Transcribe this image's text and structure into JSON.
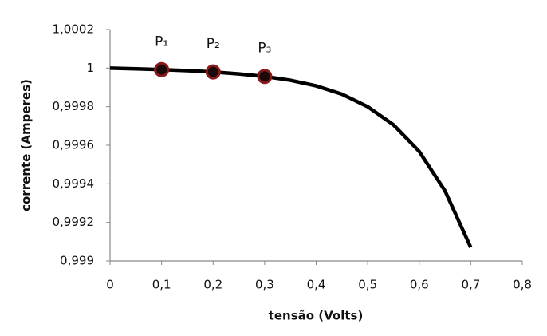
{
  "chart_data": {
    "type": "line",
    "xlabel": "tensão (Volts)",
    "ylabel": "corrente (Amperes)",
    "x": [
      0,
      0.05,
      0.1,
      0.15,
      0.2,
      0.25,
      0.3,
      0.35,
      0.4,
      0.45,
      0.5,
      0.55,
      0.6,
      0.65,
      0.7
    ],
    "values": [
      1,
      0.999996,
      0.999992,
      0.999987,
      0.99998,
      0.99997,
      0.999957,
      0.999937,
      0.999908,
      0.999865,
      0.9998,
      0.999706,
      0.999568,
      0.999364,
      0.99907
    ],
    "color": "#000000",
    "points": {
      "labels": [
        "P₁",
        "P₂",
        "P₃"
      ],
      "x": [
        0.1,
        0.2,
        0.3
      ],
      "values": [
        0.999992,
        0.99998,
        0.999957
      ],
      "color": "#1a0a0a",
      "edge": "#8b1a1a"
    },
    "xlim": [
      0,
      0.8
    ],
    "xticks": [
      0,
      {
        "value": 0.1,
        "label": "0,1"
      },
      {
        "value": 0.2,
        "label": "0,2"
      },
      {
        "value": 0.3,
        "label": "0,3"
      },
      {
        "value": 0.4,
        "label": "0,4"
      },
      {
        "value": 0.5,
        "label": "0,5"
      },
      {
        "value": 0.6,
        "label": "0,6"
      },
      {
        "value": 0.7,
        "label": "0,7"
      },
      {
        "value": 0.8,
        "label": "0,8"
      }
    ],
    "ylim": [
      0.999,
      1.0002
    ],
    "yticks": [
      {
        "value": 0.999,
        "label": "0,999"
      },
      {
        "value": 0.9992,
        "label": "0,9992"
      },
      {
        "value": 0.9994,
        "label": "0,9994"
      },
      {
        "value": 0.9996,
        "label": "0,9996"
      },
      {
        "value": 0.9998,
        "label": "0,9998"
      },
      1,
      {
        "value": 1.0002,
        "label": "1,0002"
      }
    ],
    "grid": false
  }
}
